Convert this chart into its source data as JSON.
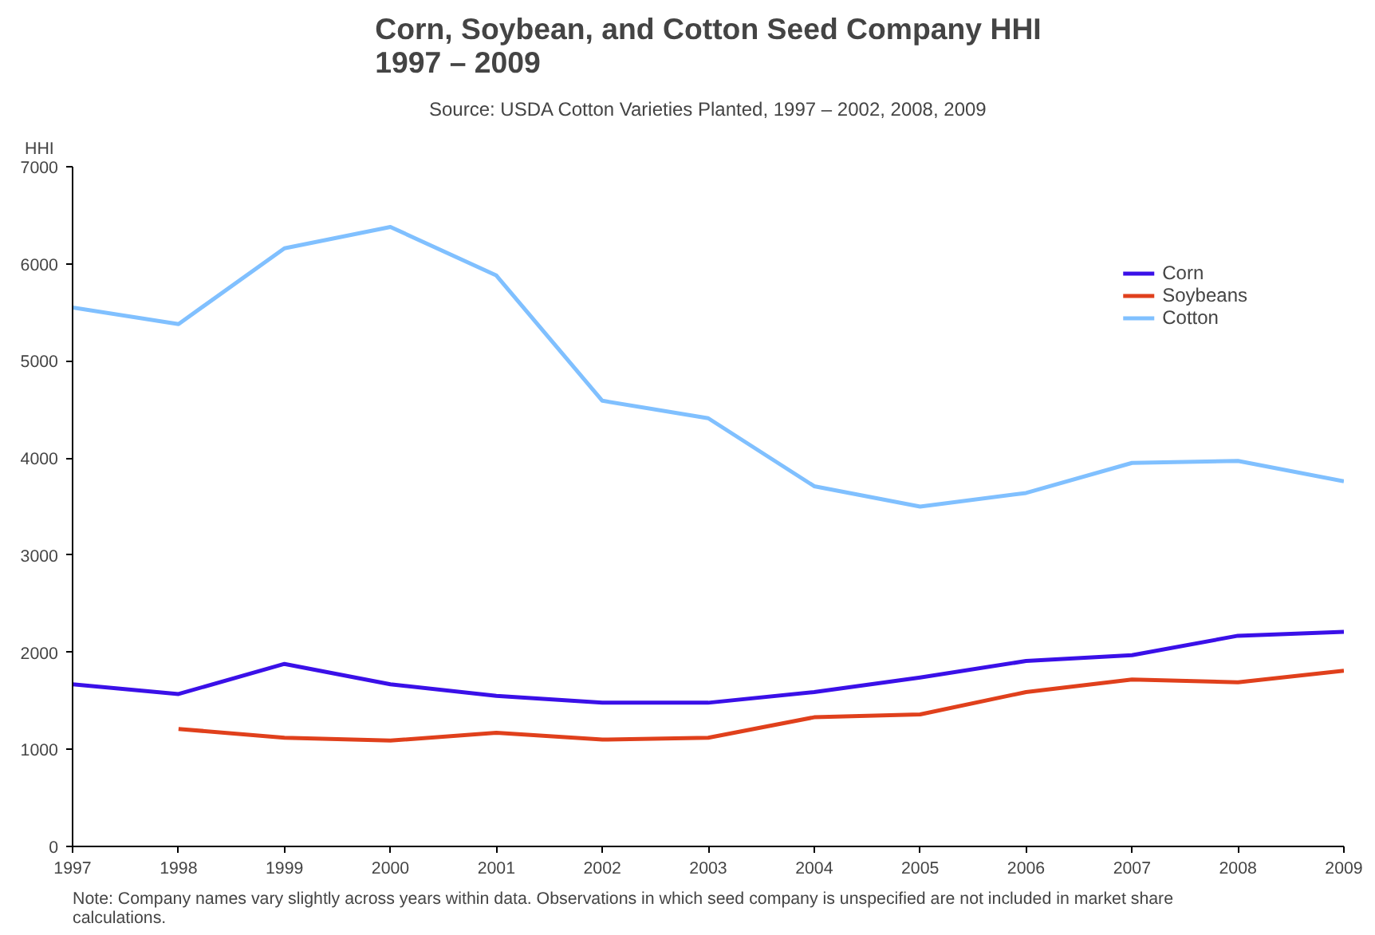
{
  "chart_data": {
    "type": "line",
    "title": "Corn, Soybean, and Cotton Seed Company HHI\n1997 – 2009",
    "subtitle": "Source: USDA Cotton Varieties Planted, 1997 – 2002, 2008, 2009",
    "ylabel": "HHI",
    "annotations": [
      "Note:  Company names vary slightly across years within data.  Observations in which seed company is unspecified are not included in market share calculations."
    ],
    "x": [
      1997,
      1998,
      1999,
      2000,
      2001,
      2002,
      2003,
      2004,
      2005,
      2006,
      2007,
      2008,
      2009
    ],
    "series": [
      {
        "name": "Corn",
        "color": "#3a10e8",
        "values": [
          1670,
          1570,
          1880,
          1670,
          1550,
          1480,
          1480,
          1590,
          1740,
          1910,
          1970,
          2170,
          2210
        ]
      },
      {
        "name": "Soybeans",
        "color": "#e0401c",
        "values": [
          null,
          1210,
          1120,
          1090,
          1170,
          1100,
          1120,
          1330,
          1360,
          1590,
          1720,
          1690,
          1810
        ]
      },
      {
        "name": "Cotton",
        "color": "#80c0ff",
        "values": [
          5550,
          5380,
          6160,
          6380,
          5880,
          4590,
          4410,
          3710,
          3500,
          3640,
          3950,
          3970,
          3760
        ]
      }
    ],
    "xlim": [
      1997,
      2009
    ],
    "xticks": [
      1997,
      1998,
      1999,
      2000,
      2001,
      2002,
      2003,
      2004,
      2005,
      2006,
      2007,
      2008,
      2009
    ],
    "ylim": [
      0,
      7000
    ],
    "yticks": [
      0,
      1000,
      2000,
      3000,
      4000,
      5000,
      6000,
      7000
    ],
    "grid": false,
    "legend": "top right",
    "marker": "none",
    "line_style": "solid"
  }
}
